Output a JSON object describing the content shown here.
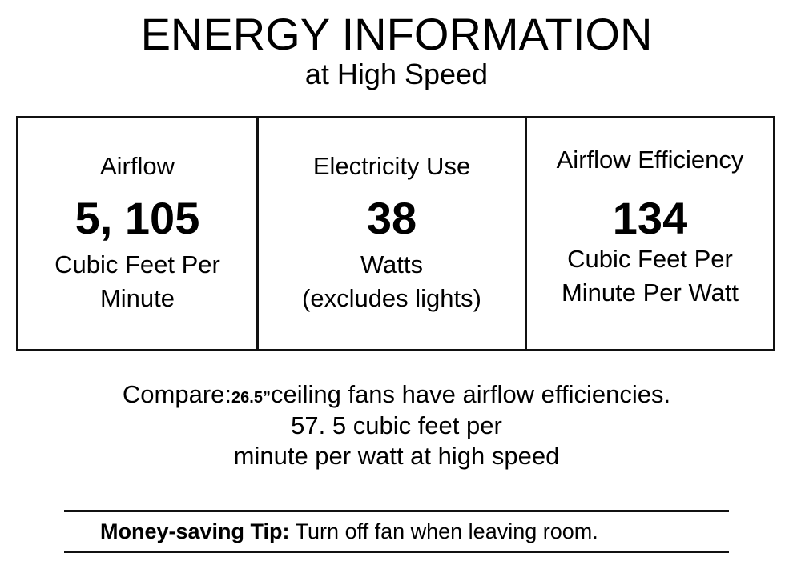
{
  "title": "ENERGY INFORMATION",
  "subtitle": "at High Speed",
  "columns": [
    {
      "label": "Airflow",
      "value": "5, 105",
      "unit1": "Cubic Feet Per",
      "unit2": "Minute"
    },
    {
      "label": "Electricity Use",
      "value": "38",
      "unit1": "Watts",
      "unit2": "(excludes lights)"
    },
    {
      "label": "Airflow Efficiency",
      "value": "134",
      "unit1": "Cubic Feet Per",
      "unit2": "Minute Per Watt"
    }
  ],
  "compare": {
    "prefix": "Compare:",
    "size": "26.5”",
    "line1_rest": "ceiling fans have airflow efficiencies.",
    "line2": "57. 5 cubic feet per",
    "line3": "minute per watt at high speed"
  },
  "tip": {
    "label": "Money-saving Tip:",
    "text": "Turn off fan when leaving room."
  }
}
